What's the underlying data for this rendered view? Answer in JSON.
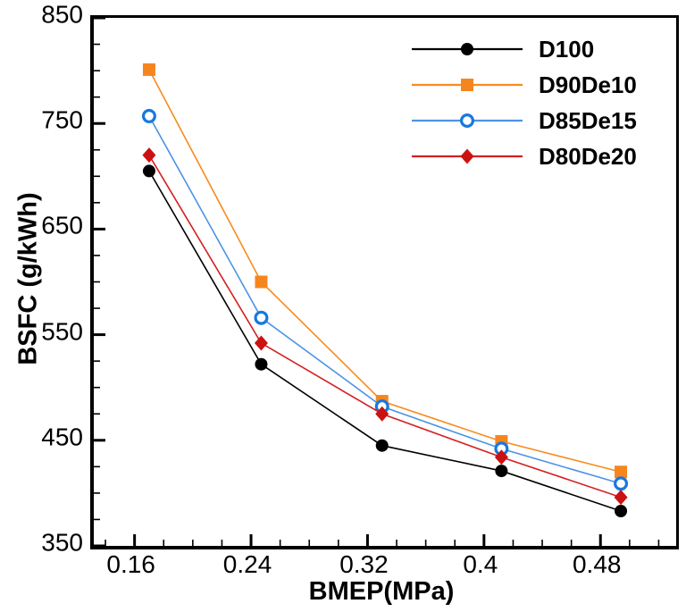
{
  "chart_data": {
    "type": "line",
    "title": "",
    "xlabel": "BMEP(MPa)",
    "ylabel": "BSFC (g/kWh)",
    "xlim": [
      0.132,
      0.532
    ],
    "ylim": [
      350,
      850
    ],
    "grid": false,
    "legend_position": "top-right-inside",
    "x_major_ticks": [
      0.16,
      0.24,
      0.32,
      0.4,
      0.48
    ],
    "x_major_tick_labels": [
      "0.16",
      "0.24",
      "0.32",
      "0.4",
      "0.48"
    ],
    "x_minor_tick_step": 0.02,
    "y_major_ticks": [
      350,
      450,
      550,
      650,
      750,
      850
    ],
    "y_major_tick_labels": [
      "350",
      "450",
      "550",
      "650",
      "750",
      "850"
    ],
    "y_minor_tick_step": 25,
    "x": [
      0.17,
      0.247,
      0.33,
      0.412,
      0.494
    ],
    "series": [
      {
        "name": "D100",
        "marker": "circle-filled",
        "line_color": "#000000",
        "marker_color": "#000000",
        "values": [
          705,
          522,
          445,
          421,
          383
        ]
      },
      {
        "name": "D90De10",
        "marker": "square-filled",
        "line_color": "#F78C1E",
        "marker_color": "#F5861F",
        "values": [
          801,
          600,
          487,
          449,
          420
        ]
      },
      {
        "name": "D85De15",
        "marker": "circle-open",
        "line_color": "#4D94E6",
        "marker_color": "#1778E0",
        "values": [
          757,
          566,
          482,
          442,
          409
        ]
      },
      {
        "name": "D80De20",
        "marker": "diamond-filled",
        "line_color": "#D42020",
        "marker_color": "#CC1111",
        "values": [
          720,
          542,
          475,
          434,
          396
        ]
      }
    ],
    "legend": {
      "labels": [
        "D100",
        "D90De10",
        "D85De15",
        "D80De20"
      ],
      "text_color": "#000000"
    },
    "axis_color": "#000000"
  }
}
